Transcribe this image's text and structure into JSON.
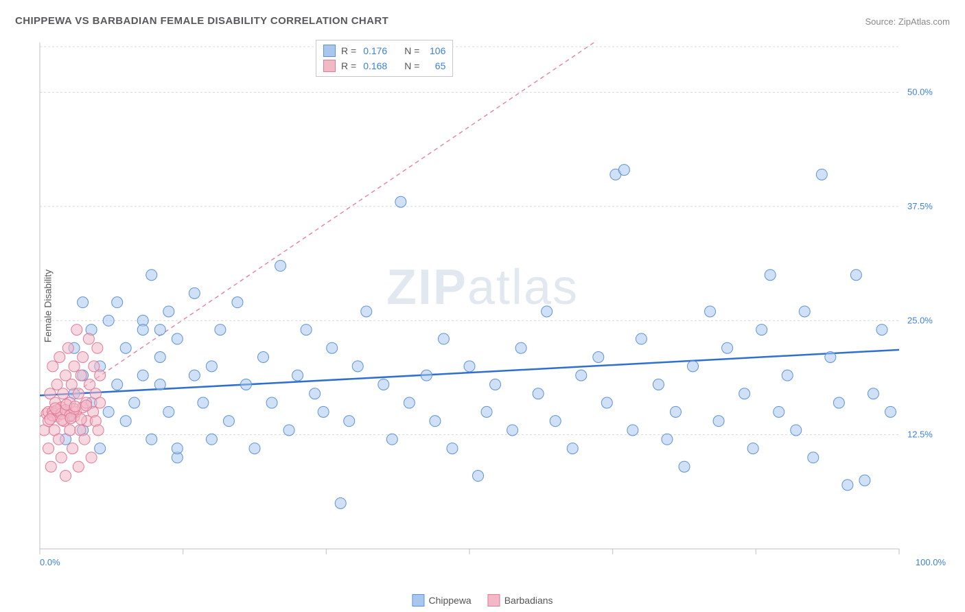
{
  "title": "CHIPPEWA VS BARBADIAN FEMALE DISABILITY CORRELATION CHART",
  "source_prefix": "Source: ",
  "source_name": "ZipAtlas.com",
  "ylabel": "Female Disability",
  "watermark_a": "ZIP",
  "watermark_b": "atlas",
  "chart": {
    "type": "scatter",
    "xlim": [
      0,
      100
    ],
    "ylim": [
      0,
      55
    ],
    "y_gridlines": [
      12.5,
      25.0,
      37.5,
      50.0,
      55.0
    ],
    "y_ticklabels": [
      "12.5%",
      "25.0%",
      "37.5%",
      "50.0%"
    ],
    "x_ticks": [
      0,
      16.67,
      33.33,
      50,
      66.67,
      83.33,
      100
    ],
    "x_ticklabels_left": "0.0%",
    "x_ticklabels_right": "100.0%",
    "background_color": "#ffffff",
    "grid_color": "#d8d8d8",
    "marker_radius": 8,
    "marker_opacity": 0.55,
    "series": [
      {
        "name": "Chippewa",
        "fill": "#a9c7ee",
        "stroke": "#5c93d6",
        "trend": {
          "y_at_x0": 16.8,
          "y_at_x100": 21.8,
          "stroke": "#2f6fd0",
          "width": 2.5,
          "dash": ""
        },
        "R": "0.176",
        "N": "106",
        "points": [
          [
            2,
            15
          ],
          [
            3,
            12
          ],
          [
            3.5,
            14.5
          ],
          [
            4,
            17
          ],
          [
            4,
            22
          ],
          [
            5,
            13
          ],
          [
            5,
            19
          ],
          [
            6,
            16
          ],
          [
            6,
            24
          ],
          [
            7,
            11
          ],
          [
            7,
            20
          ],
          [
            8,
            15
          ],
          [
            8,
            25
          ],
          [
            9,
            18
          ],
          [
            9,
            27
          ],
          [
            10,
            14
          ],
          [
            10,
            22
          ],
          [
            11,
            16
          ],
          [
            12,
            19
          ],
          [
            12,
            25
          ],
          [
            13,
            12
          ],
          [
            13,
            30
          ],
          [
            14,
            18
          ],
          [
            14,
            21
          ],
          [
            15,
            15
          ],
          [
            15,
            26
          ],
          [
            16,
            10
          ],
          [
            16,
            23
          ],
          [
            18,
            19
          ],
          [
            18,
            28
          ],
          [
            19,
            16
          ],
          [
            20,
            12
          ],
          [
            20,
            20
          ],
          [
            21,
            24
          ],
          [
            22,
            14
          ],
          [
            23,
            27
          ],
          [
            24,
            18
          ],
          [
            25,
            11
          ],
          [
            26,
            21
          ],
          [
            27,
            16
          ],
          [
            28,
            31
          ],
          [
            29,
            13
          ],
          [
            30,
            19
          ],
          [
            31,
            24
          ],
          [
            32,
            17
          ],
          [
            33,
            15
          ],
          [
            34,
            22
          ],
          [
            35,
            5
          ],
          [
            36,
            14
          ],
          [
            37,
            20
          ],
          [
            38,
            26
          ],
          [
            40,
            18
          ],
          [
            41,
            12
          ],
          [
            42,
            38
          ],
          [
            43,
            16
          ],
          [
            45,
            19
          ],
          [
            46,
            14
          ],
          [
            47,
            23
          ],
          [
            48,
            11
          ],
          [
            50,
            20
          ],
          [
            51,
            8
          ],
          [
            52,
            15
          ],
          [
            53,
            18
          ],
          [
            55,
            13
          ],
          [
            56,
            22
          ],
          [
            58,
            17
          ],
          [
            59,
            26
          ],
          [
            60,
            14
          ],
          [
            62,
            11
          ],
          [
            63,
            19
          ],
          [
            65,
            21
          ],
          [
            66,
            16
          ],
          [
            67,
            41
          ],
          [
            68,
            41.5
          ],
          [
            69,
            13
          ],
          [
            70,
            23
          ],
          [
            72,
            18
          ],
          [
            73,
            12
          ],
          [
            74,
            15
          ],
          [
            75,
            9
          ],
          [
            76,
            20
          ],
          [
            78,
            26
          ],
          [
            79,
            14
          ],
          [
            80,
            22
          ],
          [
            82,
            17
          ],
          [
            83,
            11
          ],
          [
            84,
            24
          ],
          [
            85,
            30
          ],
          [
            86,
            15
          ],
          [
            87,
            19
          ],
          [
            88,
            13
          ],
          [
            89,
            26
          ],
          [
            90,
            10
          ],
          [
            91,
            41
          ],
          [
            92,
            21
          ],
          [
            93,
            16
          ],
          [
            94,
            7
          ],
          [
            95,
            30
          ],
          [
            96,
            7.5
          ],
          [
            97,
            17
          ],
          [
            98,
            24
          ],
          [
            99,
            15
          ],
          [
            12,
            24
          ],
          [
            14,
            24
          ],
          [
            16,
            11
          ],
          [
            5,
            27
          ]
        ]
      },
      {
        "name": "Barbadians",
        "fill": "#f2b8c6",
        "stroke": "#e17a96",
        "trend": {
          "y_at_x0": 14.5,
          "y_at_x100": 78,
          "stroke": "#e17a96",
          "width": 1.3,
          "dash": "6 5"
        },
        "R": "0.168",
        "N": "65",
        "points": [
          [
            0.5,
            13
          ],
          [
            0.8,
            14.8
          ],
          [
            1,
            15
          ],
          [
            1,
            11
          ],
          [
            1.2,
            17
          ],
          [
            1.3,
            9
          ],
          [
            1.5,
            15
          ],
          [
            1.5,
            20
          ],
          [
            1.7,
            13
          ],
          [
            1.8,
            16
          ],
          [
            2,
            14.5
          ],
          [
            2,
            18
          ],
          [
            2.2,
            12
          ],
          [
            2.3,
            21
          ],
          [
            2.5,
            15.5
          ],
          [
            2.5,
            10
          ],
          [
            2.7,
            17
          ],
          [
            2.8,
            14
          ],
          [
            3,
            19
          ],
          [
            3,
            8
          ],
          [
            3.2,
            15
          ],
          [
            3.3,
            22
          ],
          [
            3.5,
            13
          ],
          [
            3.5,
            16
          ],
          [
            3.7,
            18
          ],
          [
            3.8,
            11
          ],
          [
            4,
            14.5
          ],
          [
            4,
            20
          ],
          [
            4.2,
            15
          ],
          [
            4.3,
            24
          ],
          [
            4.5,
            17
          ],
          [
            4.5,
            9
          ],
          [
            4.7,
            13
          ],
          [
            4.8,
            19
          ],
          [
            5,
            15.5
          ],
          [
            5,
            21
          ],
          [
            5.2,
            12
          ],
          [
            5.4,
            16
          ],
          [
            5.5,
            14
          ],
          [
            5.7,
            23
          ],
          [
            5.8,
            18
          ],
          [
            6,
            10
          ],
          [
            6.2,
            15
          ],
          [
            6.3,
            20
          ],
          [
            6.5,
            14
          ],
          [
            6.5,
            17
          ],
          [
            6.7,
            22
          ],
          [
            6.8,
            13
          ],
          [
            7,
            16
          ],
          [
            7,
            19
          ],
          [
            1,
            14
          ],
          [
            1.5,
            14.6
          ],
          [
            2,
            15.2
          ],
          [
            2.5,
            14.8
          ],
          [
            3,
            15.2
          ],
          [
            3.5,
            14.6
          ],
          [
            4,
            15.3
          ],
          [
            1.2,
            14.2
          ],
          [
            1.8,
            15.4
          ],
          [
            2.6,
            14.1
          ],
          [
            3.1,
            15.8
          ],
          [
            3.6,
            14.3
          ],
          [
            4.1,
            15.6
          ],
          [
            4.8,
            14.2
          ],
          [
            5.4,
            15.7
          ]
        ]
      }
    ]
  },
  "legend_top": {
    "rows": [
      {
        "sw_fill": "#a9c7ee",
        "sw_stroke": "#5c93d6",
        "R": "0.176",
        "N": "106"
      },
      {
        "sw_fill": "#f2b8c6",
        "sw_stroke": "#e17a96",
        "R": "0.168",
        "N": "65"
      }
    ],
    "R_label": "R =",
    "N_label": "N ="
  },
  "legend_bottom": [
    {
      "fill": "#a9c7ee",
      "stroke": "#5c93d6",
      "label": "Chippewa"
    },
    {
      "fill": "#f2b8c6",
      "stroke": "#e17a96",
      "label": "Barbadians"
    }
  ]
}
